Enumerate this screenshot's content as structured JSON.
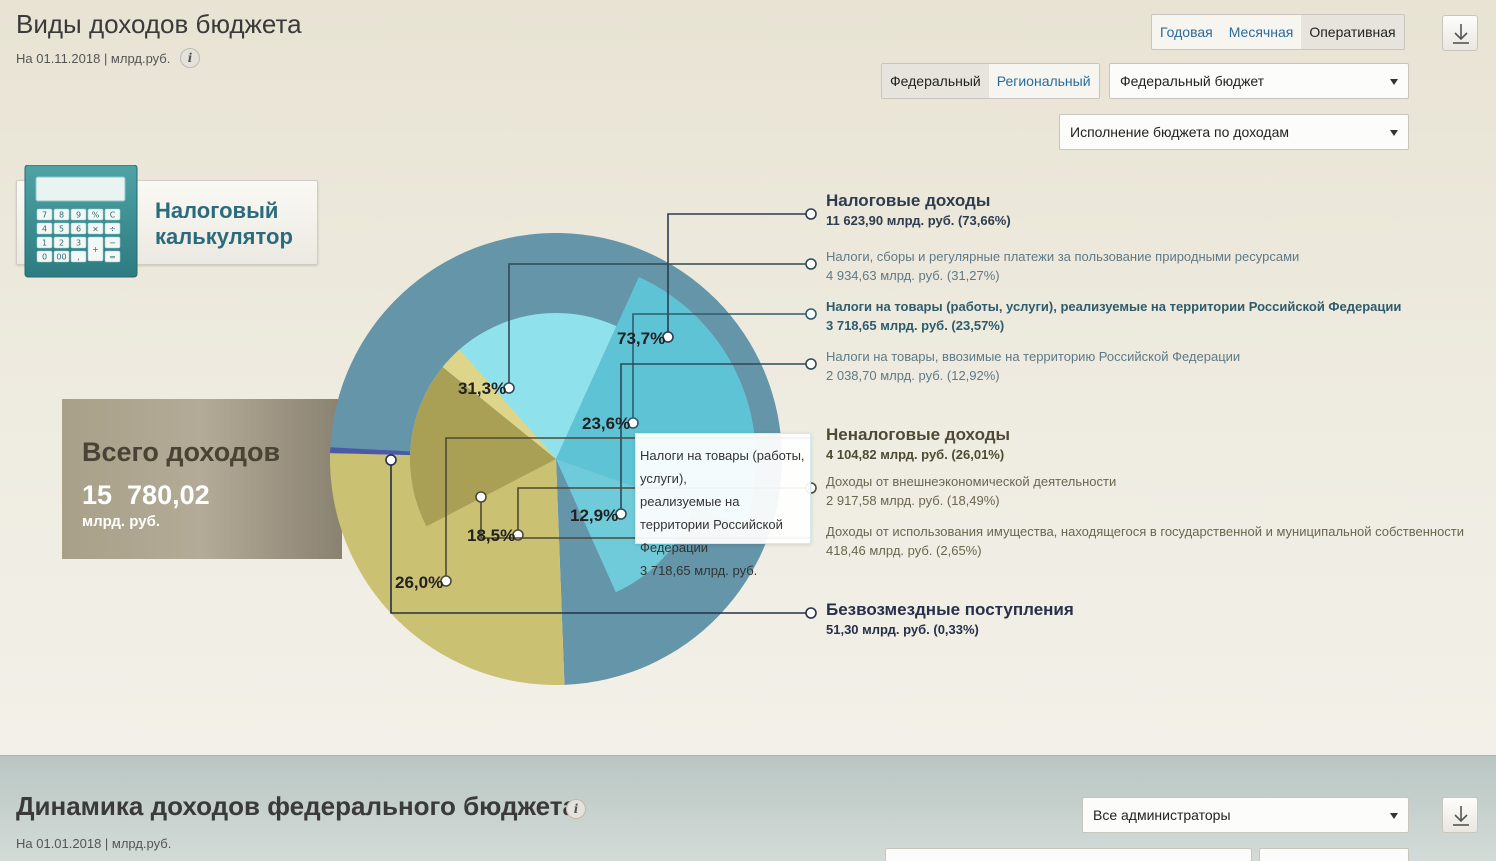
{
  "header": {
    "title": "Виды доходов бюджета",
    "date_label": "На 01.11.2018 | млрд.руб.",
    "info_glyph": "i",
    "info_icon": "info-icon"
  },
  "period_tabs": [
    {
      "label": "Годовая",
      "active": false
    },
    {
      "label": "Месячная",
      "active": false
    },
    {
      "label": "Оперативная",
      "active": true
    }
  ],
  "level_tabs": [
    {
      "label": "Федеральный",
      "active": true
    },
    {
      "label": "Региональный",
      "active": false
    }
  ],
  "budget_select": {
    "value": "Федеральный бюджет"
  },
  "report_select": {
    "value": "Исполнение бюджета по доходам"
  },
  "download_icon": "download-icon",
  "tax_calculator": {
    "label": "Налоговый калькулятор",
    "icon": "calculator-icon",
    "keys": [
      "7",
      "8",
      "9",
      "%",
      "C",
      "4",
      "5",
      "6",
      "×",
      "÷",
      "1",
      "2",
      "3",
      "−",
      "0",
      "00",
      ",",
      "+",
      "="
    ]
  },
  "total": {
    "title": "Всего доходов",
    "value": "15  780,02",
    "unit": "млрд. руб."
  },
  "chart_data": {
    "type": "pie",
    "title": "",
    "total": 15780.02,
    "unit": "млрд. руб.",
    "outer_ring": [
      {
        "name": "Налоговые доходы",
        "value": 11623.9,
        "share": 73.66,
        "label": "73,7%",
        "color": "#6495a8"
      },
      {
        "name": "Неналоговые доходы",
        "value": 4104.82,
        "share": 26.01,
        "label": "26,0%",
        "color": "#cbc173"
      },
      {
        "name": "Безвозмездные поступления",
        "value": 51.3,
        "share": 0.33,
        "label": "",
        "color": "#4a5aa8"
      }
    ],
    "inner_slices": [
      {
        "name": "Налоги, сборы и регулярные платежи за пользование природными ресурсами",
        "value": 4934.63,
        "share": 31.27,
        "label": "31,3%",
        "color": "#8fe2ec"
      },
      {
        "name": "Налоги на товары (работы, услуги), реализуемые на территории Российской Федерации",
        "value": 3718.65,
        "share": 23.57,
        "label": "23,6%",
        "color": "#5fc3d6"
      },
      {
        "name": "Налоги на товары, ввозимые на территорию Российской Федерации",
        "value": 2038.7,
        "share": 12.92,
        "label": "12,9%",
        "color": "#6fcad9"
      },
      {
        "name": "Доходы от внешнеэкономической деятельности",
        "value": 2917.58,
        "share": 18.49,
        "label": "18,5%",
        "color": "#a9a056"
      },
      {
        "name": "Доходы от использования имущества, находящегося в государственной и муниципальной собственности",
        "value": 418.46,
        "share": 2.65,
        "label": "",
        "color": "#ddd58a"
      }
    ]
  },
  "legend": [
    {
      "name": "Налоговые доходы",
      "value": "11 623,90 млрд. руб. (73,66%)",
      "level": 1,
      "color": "#2d3c4e"
    },
    {
      "name": "Налоги, сборы и регулярные платежи за пользование природными ресурсами",
      "value": "4 934,63 млрд. руб. (31,27%)",
      "level": 2,
      "color": "#5e7a86"
    },
    {
      "name": "Налоги на товары (работы, услуги), реализуемые на территории Российской Федерации",
      "value": "3 718,65 млрд. руб. (23,57%)",
      "level": 2,
      "highlight": true,
      "color": "#2f5c6c"
    },
    {
      "name": "Налоги на товары, ввозимые на территорию Российской Федерации",
      "value": "2 038,70 млрд. руб. (12,92%)",
      "level": 2,
      "color": "#5e7a86"
    },
    {
      "name": "Неналоговые доходы",
      "value": "4 104,82 млрд. руб. (26,01%)",
      "level": 1,
      "color": "#4e4a34"
    },
    {
      "name": "Доходы от внешнеэкономической деятельности",
      "value": "2 917,58 млрд. руб. (18,49%)",
      "level": 2,
      "color": "#6b6650"
    },
    {
      "name": "Доходы от использования имущества, находящегося в государственной и муниципальной собственности",
      "value": "418,46 млрд. руб. (2,65%)",
      "level": 2,
      "color": "#6b6650"
    },
    {
      "name": "Безвозмездные поступления",
      "value": "51,30 млрд. руб. (0,33%)",
      "level": 1,
      "color": "#26304a"
    }
  ],
  "tooltip": {
    "line1": "Налоги на товары (работы, услуги),",
    "line2": "реализуемые на территории Российской",
    "line3": "Федерации",
    "value": "3 718,65 млрд. руб."
  },
  "dynamics": {
    "title": "Динамика доходов федерального бюджета",
    "date_label": "На 01.01.2018 | млрд.руб.",
    "admin_select": {
      "value": "Все администраторы"
    }
  }
}
